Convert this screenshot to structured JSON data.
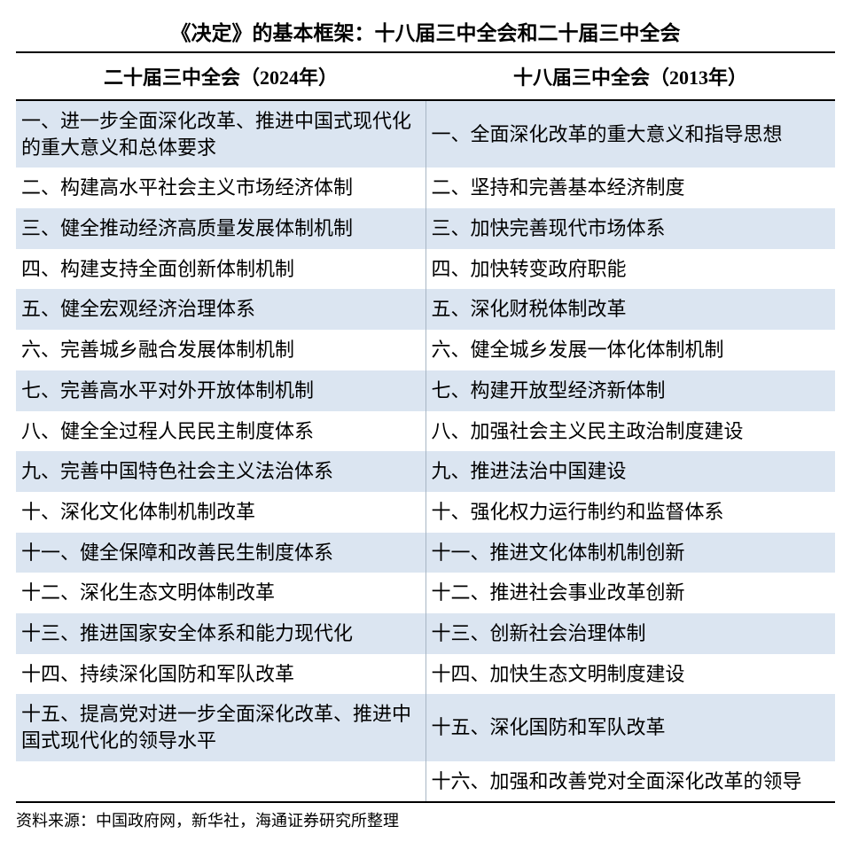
{
  "title": "《决定》的基本框架：十八届三中全会和二十届三中全会",
  "columns": {
    "left_header": "二十届三中全会（2024年）",
    "right_header": "十八届三中全会（2013年）"
  },
  "rows": [
    {
      "left": "一、进一步全面深化改革、推进中国式现代化的重大意义和总体要求",
      "right": "一、全面深化改革的重大意义和指导思想"
    },
    {
      "left": "二、构建高水平社会主义市场经济体制",
      "right": "二、坚持和完善基本经济制度"
    },
    {
      "left": "三、健全推动经济高质量发展体制机制",
      "right": "三、加快完善现代市场体系"
    },
    {
      "left": "四、构建支持全面创新体制机制",
      "right": "四、加快转变政府职能"
    },
    {
      "left": "五、健全宏观经济治理体系",
      "right": "五、深化财税体制改革"
    },
    {
      "left": "六、完善城乡融合发展体制机制",
      "right": "六、健全城乡发展一体化体制机制"
    },
    {
      "left": "七、完善高水平对外开放体制机制",
      "right": "七、构建开放型经济新体制"
    },
    {
      "left": "八、健全全过程人民民主制度体系",
      "right": "八、加强社会主义民主政治制度建设"
    },
    {
      "left": "九、完善中国特色社会主义法治体系",
      "right": "九、推进法治中国建设"
    },
    {
      "left": "十、深化文化体制机制改革",
      "right": "十、强化权力运行制约和监督体系"
    },
    {
      "left": "十一、健全保障和改善民生制度体系",
      "right": "十一、推进文化体制机制创新"
    },
    {
      "left": "十二、深化生态文明体制改革",
      "right": "十二、推进社会事业改革创新"
    },
    {
      "left": "十三、推进国家安全体系和能力现代化",
      "right": "十三、创新社会治理体制"
    },
    {
      "left": "十四、持续深化国防和军队改革",
      "right": "十四、加快生态文明制度建设"
    },
    {
      "left": "十五、提高党对进一步全面深化改革、推进中国式现代化的领导水平",
      "right": "十五、深化国防和军队改革"
    },
    {
      "left": "",
      "right": "十六、加强和改善党对全面深化改革的领导"
    }
  ],
  "source": "资料来源：中国政府网，新华社，海通证券研究所整理",
  "style": {
    "type": "table",
    "row_stripe_even": "#dbe5f1",
    "row_stripe_odd": "#ffffff",
    "title_fontsize": 23,
    "header_fontsize": 22,
    "cell_fontsize": 22,
    "source_fontsize": 18,
    "title_fontweight": "bold",
    "header_fontweight": "bold",
    "cell_fontweight": "normal",
    "border_color_outer": "#000000",
    "border_color_inner": "#a8b6c4",
    "text_color": "#000000",
    "background_color": "#ffffff",
    "column_widths_pct": [
      50,
      50
    ],
    "font_family": "serif"
  }
}
